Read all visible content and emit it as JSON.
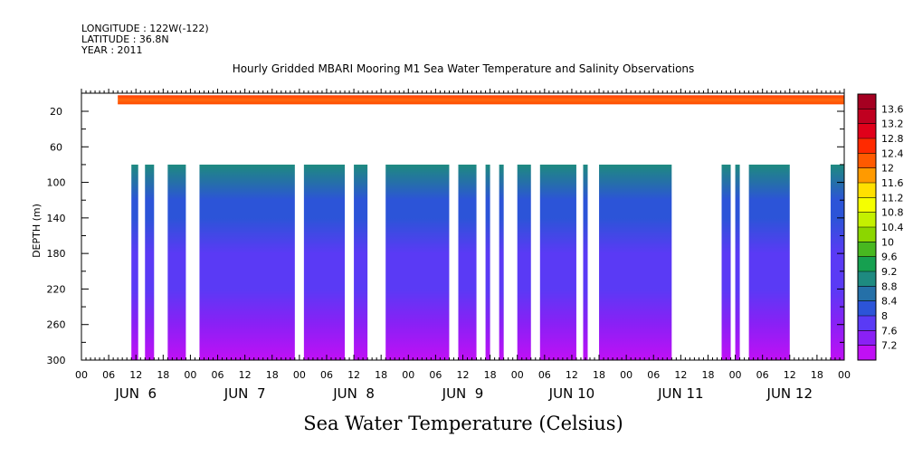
{
  "header": {
    "longitude": "LONGITUDE : 122W(-122)",
    "latitude": "LATITUDE : 36.8N",
    "year": "YEAR : 2011"
  },
  "chart_data": {
    "type": "heatmap",
    "title": "Hourly Gridded MBARI Mooring M1 Sea Water Temperature and Salinity Observations",
    "xlabel": "Sea Water Temperature (Celsius)",
    "ylabel": "DEPTH (m)",
    "x_unit": "hours since JUN 6 00",
    "xlim": [
      0,
      168
    ],
    "ylim": [
      300,
      2
    ],
    "y_reversed": true,
    "y_ticks": [
      20,
      60,
      100,
      140,
      180,
      220,
      260,
      300
    ],
    "x_hour_ticks": [
      "00",
      "06",
      "12",
      "18",
      "00",
      "06",
      "12",
      "18",
      "00",
      "06",
      "12",
      "18",
      "00",
      "06",
      "12",
      "18",
      "00",
      "06",
      "12",
      "18",
      "00",
      "06",
      "12",
      "18",
      "00",
      "06",
      "12",
      "18",
      "00"
    ],
    "x_day_labels": [
      "JUN  6",
      "JUN  7",
      "JUN  8",
      "JUN  9",
      "JUN 10",
      "JUN 11",
      "JUN 12"
    ],
    "colorbar": {
      "ticks": [
        "13.6",
        "13.2",
        "12.8",
        "12.4",
        "12",
        "11.6",
        "11.2",
        "10.8",
        "10.4",
        "10",
        "9.6",
        "9.2",
        "8.8",
        "8.4",
        "8",
        "7.6",
        "7.2"
      ],
      "colors": [
        "#a50021",
        "#c00020",
        "#e0001a",
        "#ff2a00",
        "#ff5a00",
        "#ff9a00",
        "#ffe000",
        "#f5ff00",
        "#c4f000",
        "#8cd600",
        "#48b820",
        "#16a050",
        "#1e8a80",
        "#2570a8",
        "#2c54d8",
        "#5a3af5",
        "#8a20f5",
        "#c010f5"
      ],
      "min": 7.2,
      "max": 13.6
    },
    "surface_layer": {
      "depth_range": [
        2,
        12
      ],
      "start_hour": 8,
      "end_hour": 168,
      "temperature": 12.6
    },
    "deep_depth_range": [
      80,
      300
    ],
    "deep_profile": {
      "depths": [
        80,
        100,
        120,
        140,
        180,
        220,
        260,
        300
      ],
      "temperatures": [
        9.2,
        8.9,
        8.6,
        8.45,
        8.25,
        8.0,
        7.7,
        7.4
      ]
    },
    "deep_segments": [
      {
        "start": 11,
        "end": 12.5
      },
      {
        "start": 14,
        "end": 16
      },
      {
        "start": 19,
        "end": 23
      },
      {
        "start": 26,
        "end": 47
      },
      {
        "start": 49,
        "end": 58
      },
      {
        "start": 60,
        "end": 63
      },
      {
        "start": 67,
        "end": 81
      },
      {
        "start": 83,
        "end": 87
      },
      {
        "start": 89,
        "end": 90
      },
      {
        "start": 92,
        "end": 93
      },
      {
        "start": 96,
        "end": 99
      },
      {
        "start": 101,
        "end": 109
      },
      {
        "start": 110.5,
        "end": 111.5
      },
      {
        "start": 114,
        "end": 130
      },
      {
        "start": 141,
        "end": 143
      },
      {
        "start": 144,
        "end": 145
      },
      {
        "start": 147,
        "end": 156
      },
      {
        "start": 165,
        "end": 168
      }
    ]
  }
}
